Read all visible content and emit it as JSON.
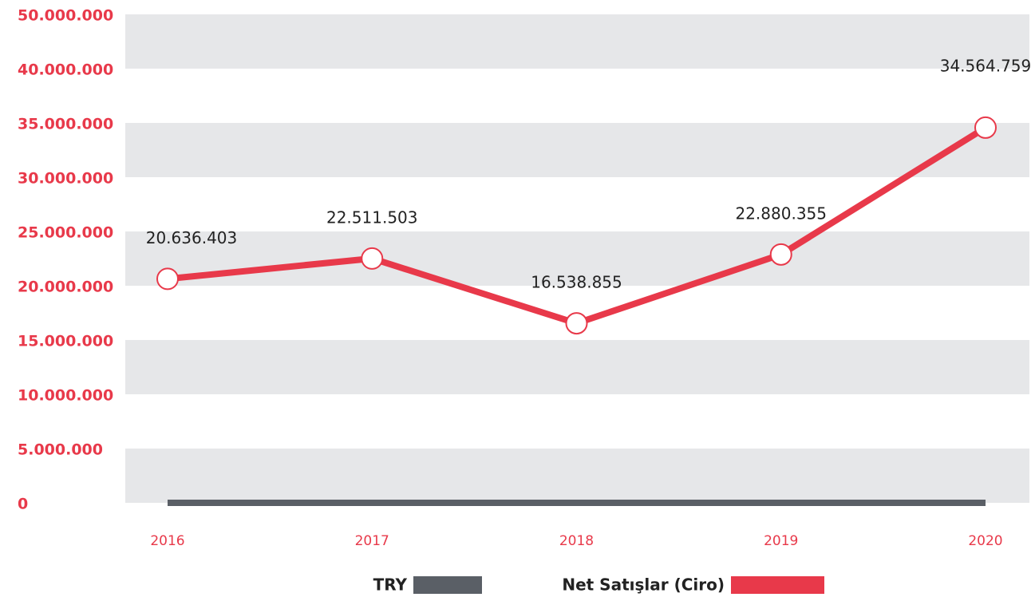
{
  "chart_data": {
    "type": "line",
    "categories": [
      "2016",
      "2017",
      "2018",
      "2019",
      "2020"
    ],
    "series": [
      {
        "name": "TRY",
        "color": "#5a5f66",
        "values": [
          0,
          0,
          0,
          0,
          0
        ]
      },
      {
        "name": "Net Satışlar (Ciro)",
        "color": "#e8394a",
        "values": [
          20636403,
          22511503,
          16538855,
          22880355,
          34564759
        ],
        "value_labels": [
          "20.636.403",
          "22.511.503",
          "16.538.855",
          "22.880.355",
          "34.564.759"
        ]
      }
    ],
    "ylim": [
      0,
      50000000
    ],
    "yticks": [
      {
        "value": 0,
        "label": "0"
      },
      {
        "value": 5000000,
        "label": "5.000.000"
      },
      {
        "value": 10000000,
        "label": "10.000.000"
      },
      {
        "value": 15000000,
        "label": "15.000.000"
      },
      {
        "value": 20000000,
        "label": "20.000.000"
      },
      {
        "value": 25000000,
        "label": "25.000.000"
      },
      {
        "value": 30000000,
        "label": "30.000.000"
      },
      {
        "value": 35000000,
        "label": "35.000.000"
      },
      {
        "value": 40000000,
        "label": "40.000.000"
      },
      {
        "value": 50000000,
        "label": "50.000.000"
      }
    ],
    "grid": "bands"
  }
}
